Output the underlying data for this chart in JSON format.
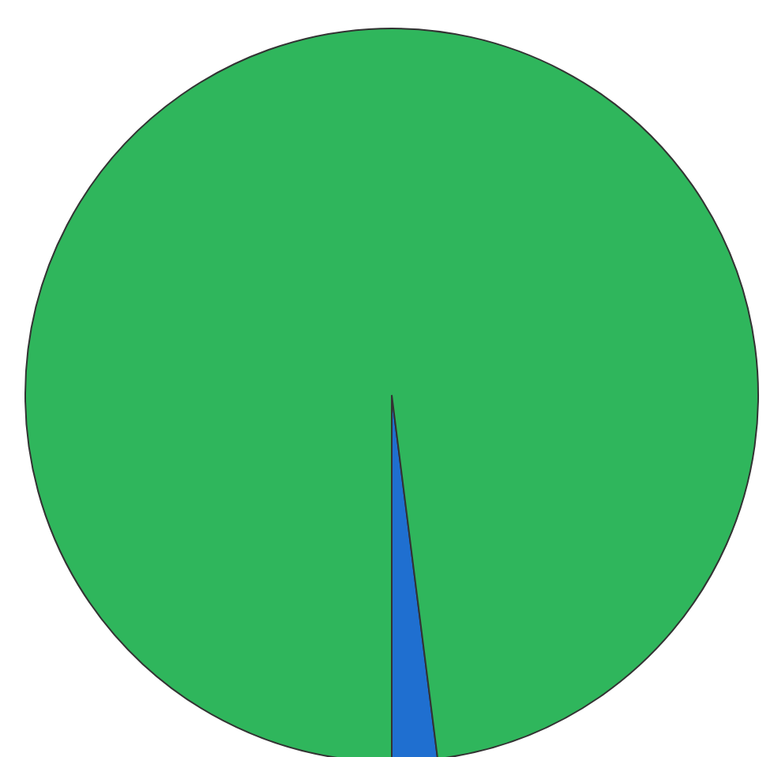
{
  "chart_data": {
    "type": "pie",
    "categories": [
      null,
      null
    ],
    "values": [
      2,
      98
    ],
    "colors": [
      "#1f6fd0",
      "#2fb65c"
    ],
    "legend": false
  }
}
